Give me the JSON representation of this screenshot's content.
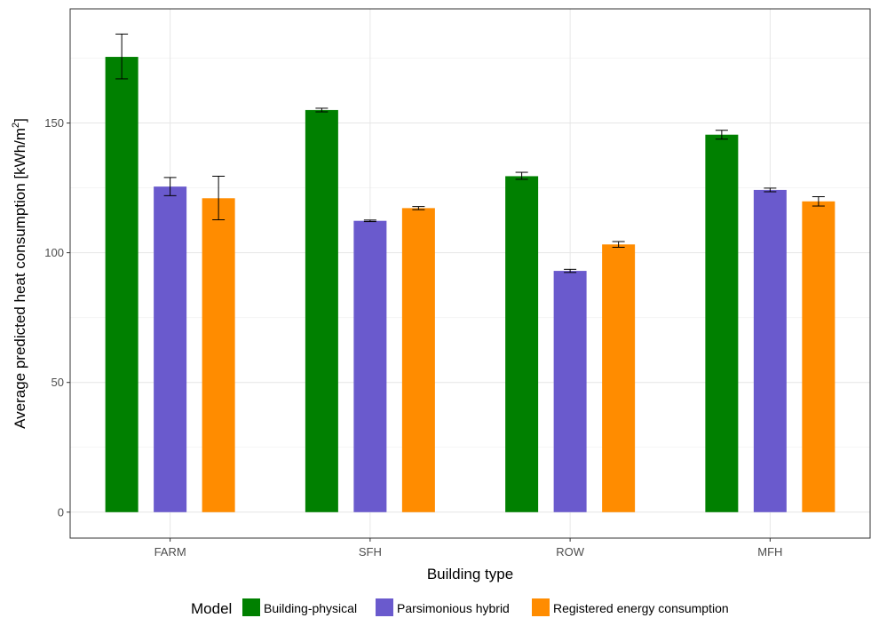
{
  "chart_data": {
    "type": "bar",
    "xlabel": "Building type",
    "ylabel_main": "Average predicted heat consumption [kWh/m",
    "ylabel_sup": "2",
    "ylabel_end": "]",
    "ylim": [
      -10,
      194
    ],
    "yticks": [
      0,
      50,
      100,
      150
    ],
    "categories": [
      "FARM",
      "SFH",
      "ROW",
      "MFH"
    ],
    "grid": true,
    "legend_title": "Model",
    "legend_position": "bottom",
    "error_bars": true,
    "series": [
      {
        "name": "Building-physical",
        "color": "#008000",
        "values": [
          175.5,
          155,
          129.5,
          145.5
        ],
        "error_low": [
          167,
          154.3,
          128.3,
          143.8
        ],
        "error_high": [
          184.3,
          155.7,
          131,
          147.2
        ]
      },
      {
        "name": "Parsimonious hybrid",
        "color": "#6a5acd",
        "values": [
          125.5,
          112.3,
          93,
          124.2
        ],
        "error_low": [
          122,
          112,
          92.4,
          123.5
        ],
        "error_high": [
          129,
          112.6,
          93.6,
          124.9
        ]
      },
      {
        "name": "Registered energy consumption",
        "color": "#ff8c00",
        "values": [
          121,
          117.2,
          103.2,
          119.8
        ],
        "error_low": [
          112.7,
          116.6,
          102.1,
          118
        ],
        "error_high": [
          129.5,
          117.8,
          104.3,
          121.6
        ]
      }
    ]
  }
}
